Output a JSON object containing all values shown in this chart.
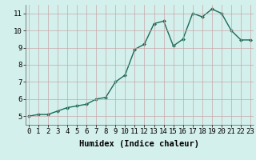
{
  "x": [
    0,
    1,
    2,
    3,
    4,
    5,
    6,
    7,
    8,
    9,
    10,
    11,
    12,
    13,
    14,
    15,
    16,
    17,
    18,
    19,
    20,
    21,
    22,
    23
  ],
  "y": [
    5.0,
    5.1,
    5.1,
    5.3,
    5.5,
    5.6,
    5.7,
    6.0,
    6.1,
    7.0,
    7.4,
    8.9,
    9.2,
    10.4,
    10.55,
    9.1,
    9.5,
    11.0,
    10.8,
    11.25,
    11.0,
    10.0,
    9.45,
    9.45
  ],
  "line_color": "#1a6b5a",
  "marker": "D",
  "marker_size": 2,
  "bg_color": "#d4f0ec",
  "grid_color": "#c8a8a8",
  "xlabel": "Humidex (Indice chaleur)",
  "xlabel_fontsize": 7.5,
  "yticks": [
    5,
    6,
    7,
    8,
    9,
    10,
    11
  ],
  "xticks": [
    0,
    1,
    2,
    3,
    4,
    5,
    6,
    7,
    8,
    9,
    10,
    11,
    12,
    13,
    14,
    15,
    16,
    17,
    18,
    19,
    20,
    21,
    22,
    23
  ],
  "xlim": [
    -0.3,
    23.3
  ],
  "ylim": [
    4.5,
    11.5
  ],
  "tick_fontsize": 6.5,
  "linewidth": 1.0
}
